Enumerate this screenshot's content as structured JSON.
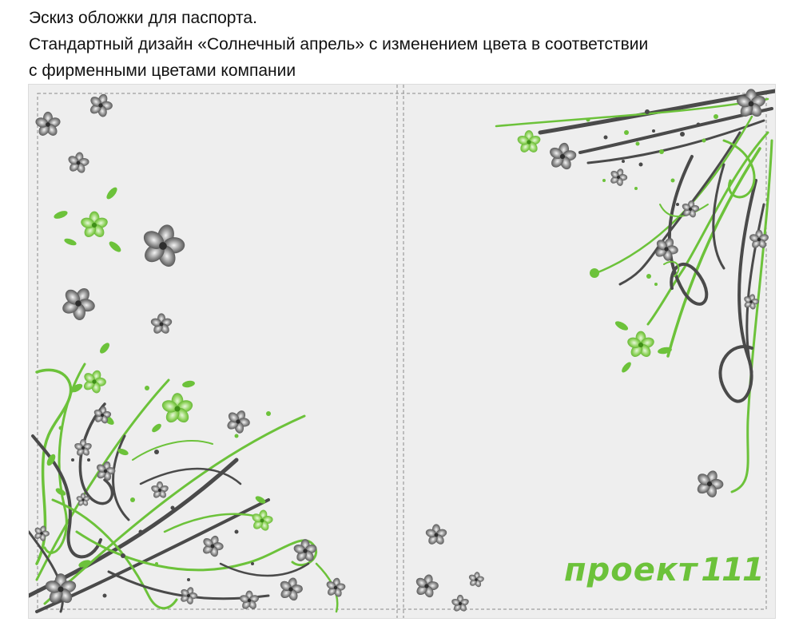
{
  "caption": {
    "line1": "Эскиз обложки для паспорта.",
    "line2": "Стандартный дизайн «Солнечный апрель» с изменением цвета в соответствии",
    "line3": "с фирменными цветами компании"
  },
  "cover": {
    "logo_word": "проект",
    "logo_number": "111"
  },
  "colors": {
    "background": "#eeeeee",
    "accent_green": "#6cc23a",
    "dark_gray": "#4a4a4a",
    "dashed_line": "#8a8a8a"
  }
}
